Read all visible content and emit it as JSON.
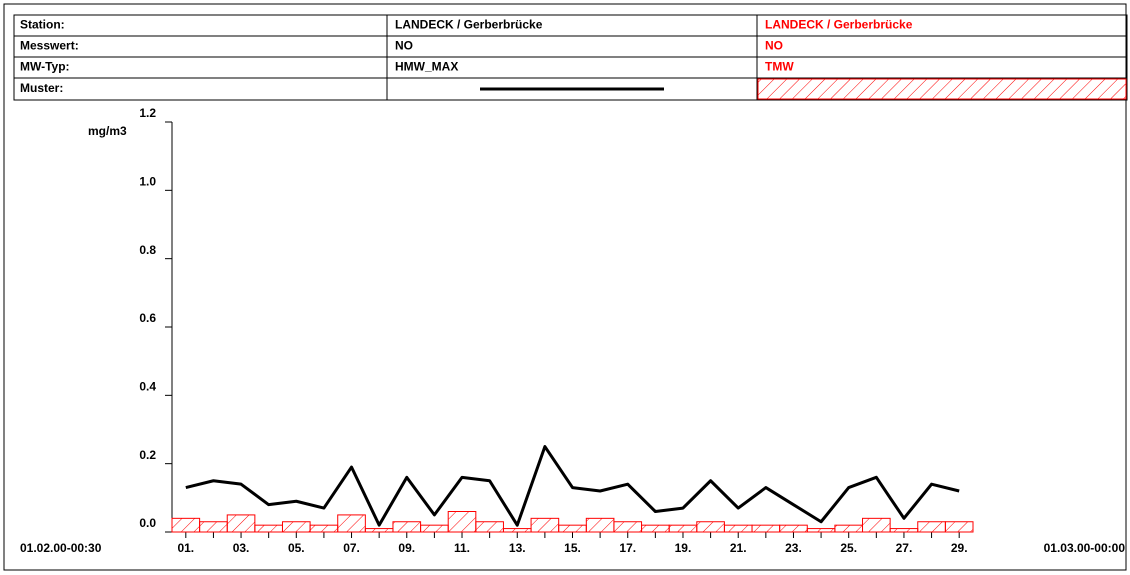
{
  "chart_data": {
    "type": "bar",
    "row_labels": [
      "Station:",
      "Messwert:",
      "MW-Typ:",
      "Muster:"
    ],
    "y_label": "mg/m3",
    "x_start_label": "01.02.00-00:30",
    "x_end_label": "01.03.00-00:00",
    "categories": [
      "01.",
      null,
      "03.",
      null,
      "05.",
      null,
      "07.",
      null,
      "09.",
      null,
      "11.",
      null,
      "13.",
      null,
      "15.",
      null,
      "17.",
      null,
      "19.",
      null,
      "21.",
      null,
      "23.",
      null,
      "25.",
      null,
      "27.",
      null,
      "29."
    ],
    "ylim": [
      0,
      1.2
    ],
    "yticks": [
      {
        "value": 0,
        "label": "0.0"
      },
      0.2,
      0.4,
      0.6,
      0.8,
      {
        "value": 1,
        "label": "1.0"
      },
      1.2
    ],
    "series": [
      {
        "station": "LANDECK / Gerberbrücke",
        "measure": "NO",
        "name": "HMW_MAX",
        "type": "line",
        "color": "#000000",
        "values": [
          0.13,
          0.15,
          0.14,
          0.08,
          0.09,
          0.07,
          0.19,
          0.02,
          0.16,
          0.05,
          0.16,
          0.15,
          0.02,
          0.25,
          0.13,
          0.12,
          0.14,
          0.06,
          0.07,
          0.15,
          0.07,
          0.13,
          0.08,
          0.03,
          0.13,
          0.16,
          0.04,
          0.14,
          0.12
        ]
      },
      {
        "station": "LANDECK / Gerberbrücke",
        "measure": "NO",
        "name": "TMW",
        "type": "bar",
        "color": "#ff0000",
        "values": [
          0.04,
          0.03,
          0.05,
          0.02,
          0.03,
          0.02,
          0.05,
          0.01,
          0.03,
          0.02,
          0.06,
          0.03,
          0.01,
          0.04,
          0.02,
          0.04,
          0.03,
          0.02,
          0.02,
          0.03,
          0.02,
          0.02,
          0.02,
          0.01,
          0.02,
          0.04,
          0.01,
          0.03,
          0.03
        ]
      }
    ]
  }
}
